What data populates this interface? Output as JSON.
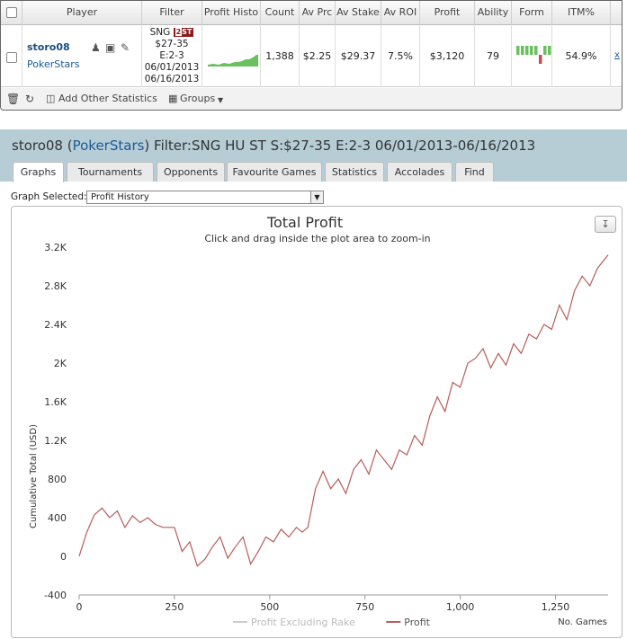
{
  "stats_table": {
    "headers": [
      "Player",
      "Filter",
      "Profit Histo",
      "Count",
      "Av Prc",
      "Av Stake",
      "Av ROI",
      "Profit",
      "Ability",
      "Form",
      "ITM%"
    ],
    "row": {
      "player_name": "storo08",
      "player_site": "PokerStars",
      "filter_lines": [
        "SNG",
        "$27-35",
        "E:2-3",
        "06/01/2013",
        "06/16/2013"
      ],
      "filter_badge_num": "2",
      "filter_badge_text": "ST",
      "count": "1,388",
      "av_prc": "$2.25",
      "av_stake": "$29.37",
      "av_roi": "7.5%",
      "profit": "$3,120",
      "ability": "79",
      "itm": "54.9%",
      "x_link": "x",
      "form_colors": {
        "win": "#6abf5e",
        "loss": "#c0504d"
      }
    },
    "footer": {
      "add_stats": "Add Other Statistics",
      "groups": "Groups"
    }
  },
  "profile": {
    "name": "storo08",
    "site": "PokerStars",
    "filter_text": "Filter:SNG HU ST S:$27-35 E:2-3 06/01/2013-06/16/2013",
    "tabs": [
      "Graphs",
      "Tournaments",
      "Opponents",
      "Favourite Games",
      "Statistics",
      "Accolades",
      "Find"
    ],
    "active_tab": "Graphs"
  },
  "graph_selector": {
    "label": "Graph Selected:",
    "value": "Profit History"
  },
  "chart_data": {
    "type": "line",
    "title": "Total Profit",
    "subtitle": "Click and drag inside the plot area to zoom-in",
    "xlabel": "No. Games",
    "ylabel": "Cumulative Total (USD)",
    "xlim": [
      0,
      1388
    ],
    "ylim": [
      -400,
      3200
    ],
    "x_ticks": [
      0,
      250,
      500,
      750,
      1000,
      1250
    ],
    "x_tick_labels": [
      "0",
      "250",
      "500",
      "750",
      "1,000",
      "1,250"
    ],
    "y_ticks": [
      -400,
      0,
      400,
      800,
      1200,
      1600,
      2000,
      2400,
      2800,
      3200
    ],
    "y_tick_labels": [
      "-400",
      "0",
      "400",
      "800",
      "1.2K",
      "1.6K",
      "2K",
      "2.4K",
      "2.8K",
      "3.2K"
    ],
    "series": [
      {
        "name": "Profit Excluding Rake",
        "color": "#cccccc",
        "x": [],
        "y": []
      },
      {
        "name": "Profit",
        "color": "#b85c5c",
        "x": [
          0,
          20,
          40,
          60,
          80,
          100,
          120,
          140,
          160,
          180,
          200,
          220,
          250,
          270,
          290,
          310,
          330,
          350,
          370,
          390,
          410,
          430,
          450,
          470,
          490,
          510,
          530,
          550,
          570,
          585,
          600,
          620,
          640,
          660,
          680,
          700,
          720,
          740,
          760,
          780,
          800,
          820,
          840,
          860,
          880,
          900,
          920,
          940,
          960,
          980,
          1000,
          1020,
          1040,
          1060,
          1080,
          1100,
          1120,
          1140,
          1160,
          1180,
          1200,
          1220,
          1240,
          1260,
          1280,
          1300,
          1320,
          1340,
          1360,
          1388
        ],
        "y": [
          0,
          250,
          430,
          500,
          400,
          470,
          300,
          420,
          350,
          400,
          330,
          300,
          300,
          50,
          150,
          -100,
          -30,
          100,
          200,
          -20,
          100,
          200,
          -80,
          50,
          200,
          150,
          280,
          200,
          300,
          250,
          300,
          700,
          880,
          700,
          800,
          650,
          900,
          1000,
          850,
          1100,
          1000,
          900,
          1100,
          1050,
          1250,
          1150,
          1450,
          1650,
          1500,
          1800,
          1750,
          2000,
          2050,
          2150,
          1950,
          2100,
          1980,
          2200,
          2100,
          2300,
          2250,
          2400,
          2350,
          2600,
          2450,
          2750,
          2900,
          2800,
          2980,
          3120
        ]
      }
    ],
    "legend_position": "bottom-center",
    "grid": false
  }
}
